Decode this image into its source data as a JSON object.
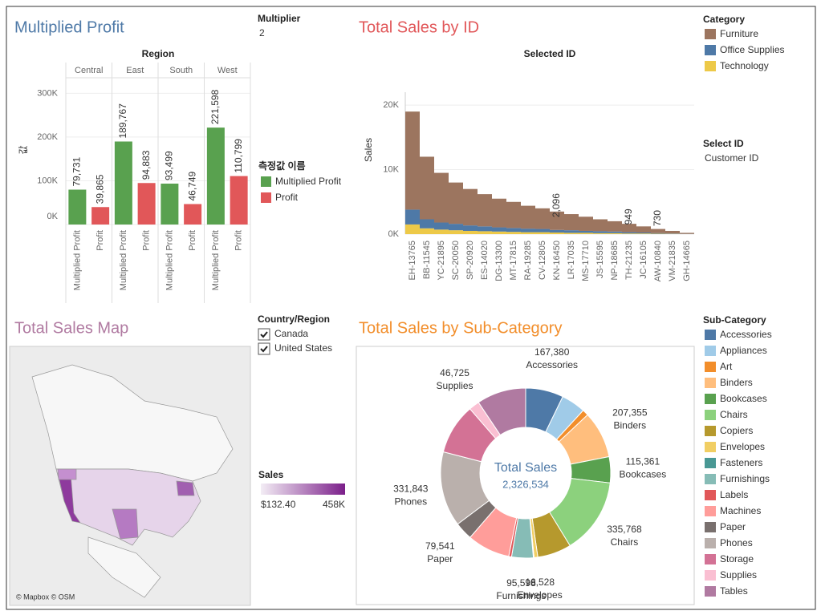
{
  "filters": {
    "multiplier": {
      "label": "Multiplier",
      "value": "2"
    },
    "select_id": {
      "label": "Select ID",
      "value": "Customer ID"
    },
    "country": {
      "label": "Country/Region",
      "options": [
        "Canada",
        "United States"
      ]
    }
  },
  "chart_data": [
    {
      "type": "grouped_bar",
      "title": "Multiplied Profit",
      "header": "Region",
      "y_label": "값",
      "legend_title": "측정값 이름",
      "categories": [
        "Central",
        "East",
        "South",
        "West"
      ],
      "series": [
        {
          "name": "Multiplied Profit",
          "color": "#59a14f",
          "values": [
            79731,
            189767,
            93499,
            221598
          ],
          "value_labels": [
            "79,731",
            "189,767",
            "93,499",
            "221,598"
          ]
        },
        {
          "name": "Profit",
          "color": "#e15759",
          "values": [
            39865,
            94883,
            46749,
            110799
          ],
          "value_labels": [
            "39,865",
            "94,883",
            "46,749",
            "110,799"
          ]
        }
      ],
      "ylim": [
        0,
        330000
      ],
      "yticks": [
        {
          "value": 0,
          "label": "0K"
        },
        {
          "value": 100000,
          "label": "100K"
        },
        {
          "value": 200000,
          "label": "200K"
        },
        {
          "value": 300000,
          "label": "300K"
        }
      ]
    },
    {
      "type": "stacked_bar",
      "title": "Total Sales by ID",
      "x_label": "Selected ID",
      "y_label": "Sales",
      "legend_title": "Category",
      "categories": [
        "EH-13765",
        "BB-11545",
        "YC-21895",
        "SC-20050",
        "SP-20920",
        "ES-14020",
        "DG-13300",
        "MT-17815",
        "RA-19285",
        "CV-12805",
        "KN-16450",
        "LR-17035",
        "MS-17710",
        "JS-15595",
        "NP-18685",
        "TH-21235",
        "JC-16105",
        "AW-10840",
        "VM-21835",
        "GH-14665"
      ],
      "series": [
        {
          "name": "Technology",
          "color": "#edc948",
          "values": [
            1500,
            900,
            700,
            600,
            500,
            450,
            400,
            350,
            300,
            300,
            250,
            200,
            200,
            150,
            150,
            100,
            100,
            60,
            40,
            15
          ]
        },
        {
          "name": "Office Supplies",
          "color": "#4e79a7",
          "values": [
            2300,
            1400,
            1100,
            1000,
            850,
            750,
            650,
            600,
            550,
            500,
            400,
            400,
            300,
            300,
            250,
            200,
            150,
            100,
            60,
            25
          ]
        },
        {
          "name": "Furniture",
          "color": "#9c755f",
          "values": [
            15200,
            9700,
            7700,
            6400,
            5650,
            5000,
            4450,
            4050,
            3550,
            3200,
            2850,
            2500,
            2200,
            1850,
            1600,
            1300,
            950,
            640,
            400,
            160
          ]
        }
      ],
      "legend_order": [
        "Furniture",
        "Office Supplies",
        "Technology"
      ],
      "ylim": [
        0,
        22000
      ],
      "yticks": [
        {
          "value": 0,
          "label": "0K"
        },
        {
          "value": 10000,
          "label": "10K"
        },
        {
          "value": 20000,
          "label": "20K"
        }
      ],
      "annotations": [
        {
          "x": "KN-16450",
          "value": 2096,
          "label": "2,096"
        },
        {
          "x": "TH-21235",
          "value": 949,
          "label": "949"
        },
        {
          "x": "AW-10840",
          "value": 730,
          "label": "730"
        }
      ]
    },
    {
      "type": "map",
      "title": "Total Sales Map",
      "attribution": "© Mapbox © OSM",
      "legend_title": "Sales",
      "legend_range": [
        {
          "value": 132.4,
          "label": "$132.40"
        },
        {
          "value": 458000,
          "label": "458K"
        }
      ],
      "colors": [
        "#f3edf5",
        "#7b1f8a"
      ]
    },
    {
      "type": "donut",
      "title": "Total Sales by Sub-Category",
      "center_label": "Total Sales",
      "total": {
        "value": 2326534,
        "label": "2,326,534"
      },
      "legend_title": "Sub-Category",
      "categories": [
        "Accessories",
        "Appliances",
        "Art",
        "Binders",
        "Bookcases",
        "Chairs",
        "Copiers",
        "Envelopes",
        "Fasteners",
        "Furnishings",
        "Labels",
        "Machines",
        "Paper",
        "Phones",
        "Storage",
        "Supplies",
        "Tables"
      ],
      "values": [
        167380,
        107532,
        27119,
        207355,
        115361,
        335768,
        149528,
        16528,
        3024,
        95598,
        12486,
        189239,
        79541,
        331843,
        223844,
        46725,
        217663
      ],
      "value_labels": [
        "167,380",
        null,
        null,
        "207,355",
        "115,361",
        "335,768",
        null,
        "16,528",
        null,
        "95,598",
        null,
        null,
        "79,541",
        "331,843",
        null,
        "46,725",
        null
      ],
      "colors": [
        "#4e79a7",
        "#a0cbe8",
        "#f28e2b",
        "#ffbe7d",
        "#59a14f",
        "#8cd17d",
        "#b6992d",
        "#f1ce63",
        "#499894",
        "#86bcb6",
        "#e15759",
        "#ff9d9a",
        "#79706e",
        "#bab0ac",
        "#d37295",
        "#fabfd2",
        "#b07aa1"
      ]
    }
  ]
}
